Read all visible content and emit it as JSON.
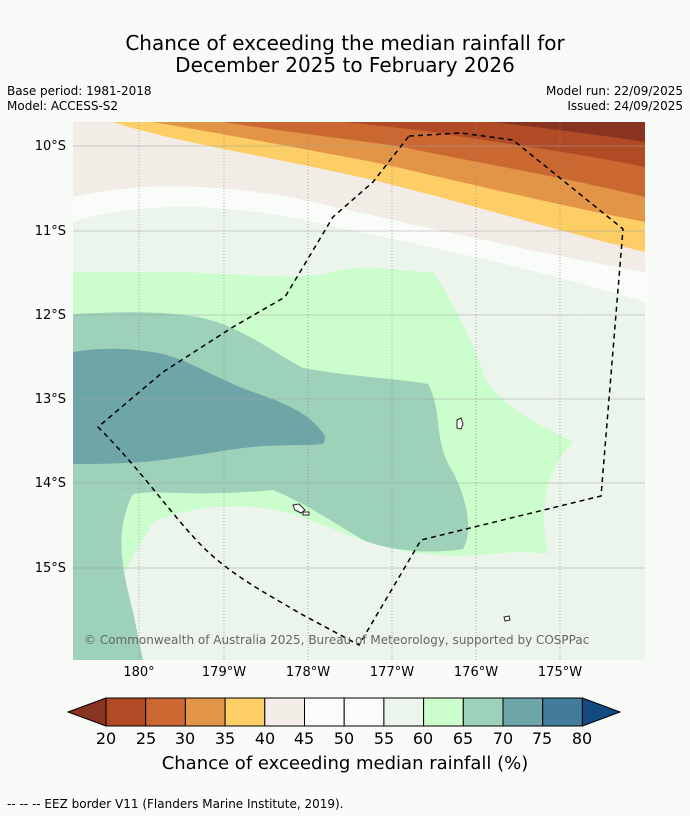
{
  "title_line1": "Chance of exceeding the median rainfall for",
  "title_line2": "December 2025 to February 2026",
  "base_period": "Base period: 1981-2018",
  "model": "Model: ACCESS-S2",
  "model_run": "Model run: 22/09/2025",
  "issued": "Issued: 24/09/2025",
  "lat_labels": [
    "10°S",
    "11°S",
    "12°S",
    "13°S",
    "14°S",
    "15°S"
  ],
  "lon_labels": [
    "180°",
    "179°W",
    "178°W",
    "177°W",
    "176°W",
    "175°W"
  ],
  "copyright": "© Commonwealth of Australia 2025, Bureau of Meteorology, supported by COSPPac",
  "colorbar": {
    "ticks": [
      "20",
      "25",
      "30",
      "35",
      "40",
      "45",
      "50",
      "55",
      "60",
      "65",
      "70",
      "75",
      "80"
    ],
    "colors": [
      "#893421",
      "#b04b25",
      "#cb6832",
      "#e29547",
      "#fdcd66",
      "#f2ece6",
      "#fafbfa",
      "#fafcfa",
      "#ebf5eb",
      "#ccfdcc",
      "#9dd1b9",
      "#6ea5a7",
      "#427c98",
      "#134a80"
    ],
    "title": "Chance of exceeding median rainfall (%)"
  },
  "footer": "--  --  -- EEZ border V11 (Flanders Marine Institute, 2019)."
}
